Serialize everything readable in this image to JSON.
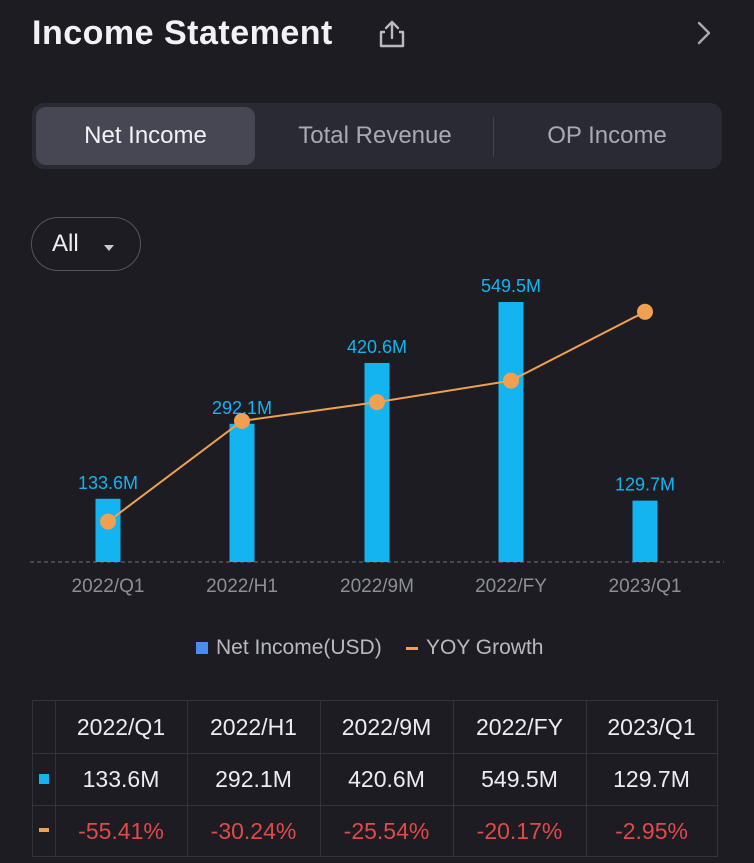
{
  "header": {
    "title": "Income Statement"
  },
  "tabs": [
    {
      "label": "Net Income",
      "active": true
    },
    {
      "label": "Total Revenue",
      "active": false
    },
    {
      "label": "OP Income",
      "active": false
    }
  ],
  "filter": {
    "label": "All"
  },
  "colors": {
    "bar": "#14b4f0",
    "line": "#f0a050",
    "negative": "#e04a4a"
  },
  "chart_data": {
    "type": "bar",
    "categories": [
      "2022/Q1",
      "2022/H1",
      "2022/9M",
      "2022/FY",
      "2023/Q1"
    ],
    "series": [
      {
        "name": "Net Income(USD)",
        "type": "bar",
        "values": [
          133.6,
          292.1,
          420.6,
          549.5,
          129.7
        ],
        "labels": [
          "133.6M",
          "292.1M",
          "420.6M",
          "549.5M",
          "129.7M"
        ]
      },
      {
        "name": "YOY Growth",
        "type": "line",
        "values": [
          -55.41,
          -30.24,
          -25.54,
          -20.17,
          -2.95
        ],
        "labels": [
          "-55.41%",
          "-30.24%",
          "-25.54%",
          "-20.17%",
          "-2.95%"
        ]
      }
    ],
    "legend": [
      "Net Income(USD)",
      "YOY Growth"
    ],
    "grid": false
  },
  "table": {
    "headers": [
      "2022/Q1",
      "2022/H1",
      "2022/9M",
      "2022/FY",
      "2023/Q1"
    ],
    "net_income": [
      "133.6M",
      "292.1M",
      "420.6M",
      "549.5M",
      "129.7M"
    ],
    "yoy_growth": [
      "-55.41%",
      "-30.24%",
      "-25.54%",
      "-20.17%",
      "-2.95%"
    ]
  }
}
